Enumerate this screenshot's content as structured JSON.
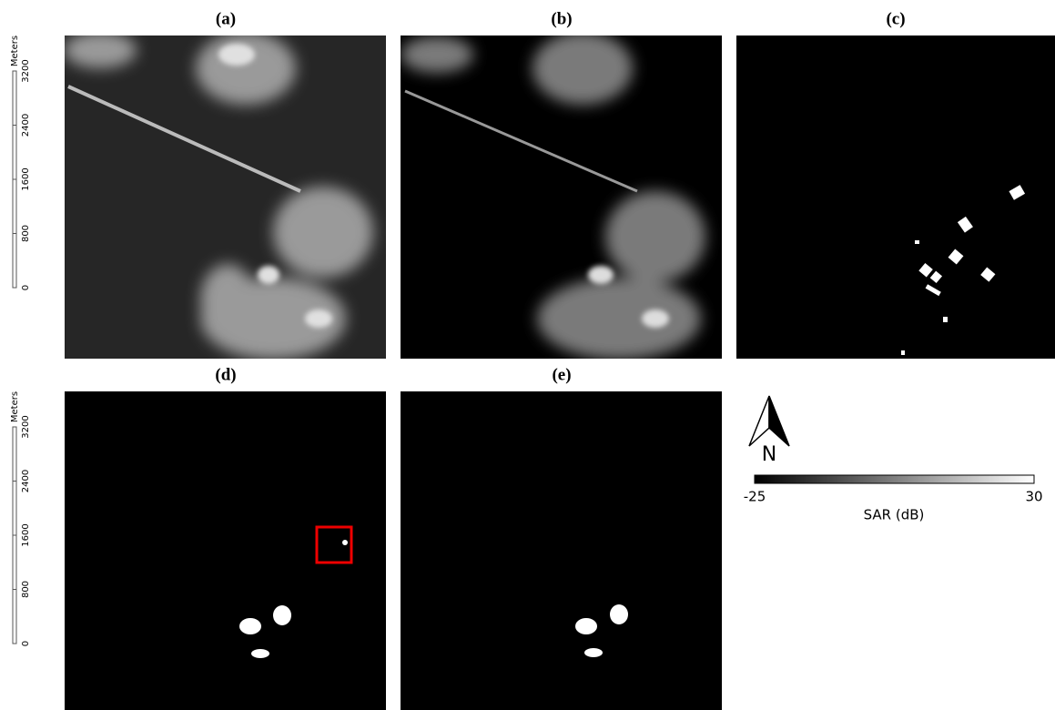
{
  "panels": [
    {
      "label": "(a)"
    },
    {
      "label": "(b)"
    },
    {
      "label": "(c)"
    },
    {
      "label": "(d)"
    },
    {
      "label": "(e)"
    }
  ],
  "scale_bars": [
    {
      "unit": "Meters",
      "ticks": [
        0,
        800,
        1600,
        2400,
        3200
      ]
    },
    {
      "unit": "Meters",
      "ticks": [
        0,
        800,
        1600,
        2400,
        3200
      ]
    }
  ],
  "north_arrow": {
    "label": "N"
  },
  "colorbar": {
    "min": -25,
    "max": 30,
    "label": "SAR (dB)"
  }
}
